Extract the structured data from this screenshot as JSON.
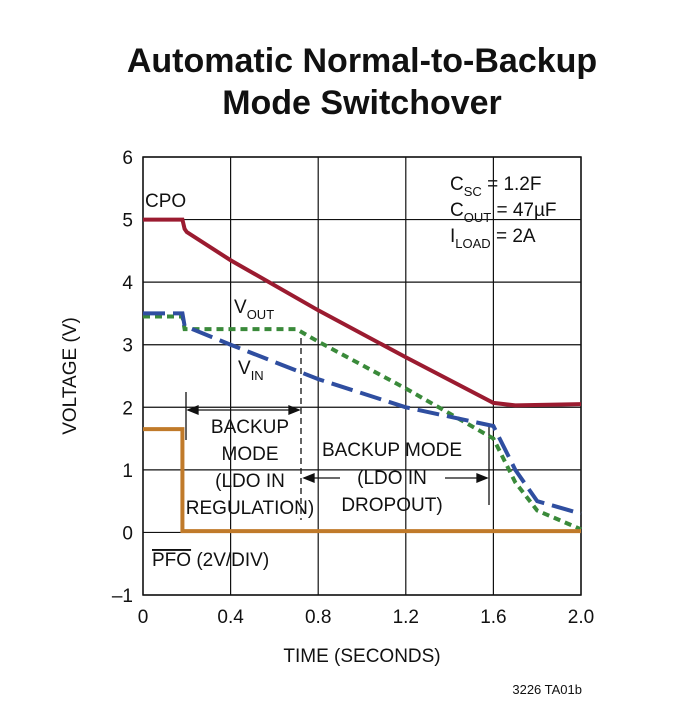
{
  "chart_data": {
    "type": "line",
    "title": [
      "Automatic Normal-to-Backup",
      "Mode Switchover"
    ],
    "xlabel": "TIME (SECONDS)",
    "ylabel": "VOLTAGE (V)",
    "xlim": [
      0,
      2
    ],
    "ylim": [
      -1,
      6
    ],
    "xticks": [
      0,
      0.4,
      0.8,
      1.2,
      1.6,
      {
        "value": 2,
        "label": "2.0"
      }
    ],
    "yticks": [
      {
        "value": -1,
        "label": "–1"
      },
      0,
      1,
      2,
      3,
      4,
      5,
      6
    ],
    "grid": true,
    "series": [
      {
        "name": "CPO",
        "color": "#9b1b30",
        "dash": "solid",
        "x": [
          0,
          0.18,
          0.19,
          0.2,
          0.4,
          0.8,
          1.2,
          1.6,
          1.7,
          2.0
        ],
        "values": [
          5,
          5,
          4.85,
          4.8,
          4.35,
          3.55,
          2.8,
          2.07,
          2.03,
          2.05
        ]
      },
      {
        "name": [
          "V",
          "OUT"
        ],
        "color": "#3a8a3a",
        "dash": "short",
        "x": [
          0,
          0.18,
          0.19,
          0.7,
          0.8,
          1.2,
          1.4,
          1.6,
          1.7,
          1.8,
          2.0
        ],
        "values": [
          3.45,
          3.45,
          3.25,
          3.25,
          3.05,
          2.3,
          1.9,
          1.5,
          0.8,
          0.35,
          0.05
        ]
      },
      {
        "name": [
          "V",
          "IN"
        ],
        "color": "#2f4ea0",
        "dash": "long",
        "x": [
          0,
          0.18,
          0.19,
          0.4,
          0.8,
          1.2,
          1.6,
          1.7,
          1.8,
          2.0
        ],
        "values": [
          3.5,
          3.5,
          3.3,
          3.0,
          2.45,
          2.0,
          1.7,
          1.0,
          0.5,
          0.3
        ]
      },
      {
        "name": [
          "PFO",
          " (2V/DIV)"
        ],
        "color": "#c07a2a",
        "dash": "solid",
        "x": [
          0,
          0.18,
          0.18,
          2.0
        ],
        "values": [
          1.65,
          1.65,
          0.02,
          0.02
        ]
      }
    ],
    "annotations": {
      "regulation": [
        "BACKUP",
        "MODE",
        "(LDO IN",
        "REGULATION)"
      ],
      "dropout": [
        "BACKUP MODE",
        "(LDO IN",
        "DROPOUT)"
      ],
      "parameters": [
        [
          "C",
          "SC",
          " = 1.2F"
        ],
        [
          "C",
          "OUT",
          " = 47µF"
        ],
        [
          "I",
          "LOAD",
          " = 2A"
        ]
      ],
      "figure_id": "3226 TA01b"
    }
  }
}
